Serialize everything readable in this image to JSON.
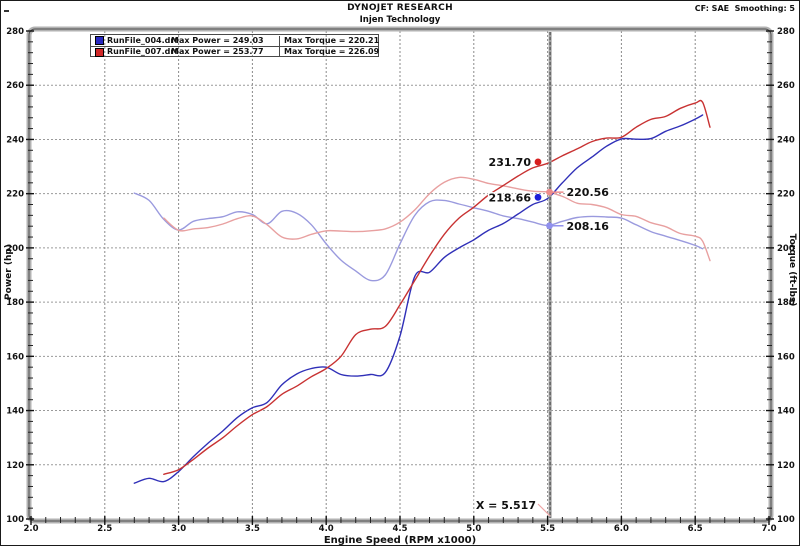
{
  "header": {
    "title": "DYNOJET RESEARCH",
    "subtitle": "Injen Technology",
    "correction": "CF: SAE  Smoothing: 5"
  },
  "legend": {
    "rows": [
      {
        "name": "RunFile_004.drf",
        "power": "Max Power = 249.03",
        "torque": "Max Torque = 220.21",
        "color": "#2828c0"
      },
      {
        "name": "RunFile_007.drf",
        "power": "Max Power = 253.77",
        "torque": "Max Torque = 226.09",
        "color": "#d02828"
      }
    ]
  },
  "axes": {
    "left_label": "Power (hp)",
    "right_label": "Torque (ft-lbs)",
    "bottom_label": "Engine Speed (RPM x1000)"
  },
  "cursor": {
    "label": "X = 5.517",
    "value": 5.517
  },
  "annotations": [
    {
      "kind": "power-red",
      "text": "231.70",
      "value": 231.7,
      "color": "#d81e1e",
      "side": "left"
    },
    {
      "kind": "power-blue",
      "text": "218.66",
      "value": 218.66,
      "color": "#1e1ed8",
      "side": "left"
    },
    {
      "kind": "torque-red",
      "text": "220.56",
      "value": 220.56,
      "color": "#ee8c8c",
      "side": "right"
    },
    {
      "kind": "torque-blue",
      "text": "208.16",
      "value": 208.16,
      "color": "#9090ee",
      "side": "right"
    }
  ],
  "chart_data": {
    "type": "line",
    "title": "DYNOJET RESEARCH - Injen Technology",
    "xlabel": "Engine Speed (RPM x1000)",
    "ylabel_left": "Power (hp)",
    "ylabel_right": "Torque (ft-lbs)",
    "xlim": [
      2.0,
      7.0
    ],
    "ylim": [
      100,
      280
    ],
    "x_ticks": [
      "2.0",
      "2.5",
      "3.0",
      "3.5",
      "4.0",
      "4.5",
      "5.0",
      "5.5",
      "6.0",
      "6.5",
      "7.0"
    ],
    "y_ticks": [
      280,
      260,
      240,
      220,
      200,
      180,
      160,
      140,
      120,
      100
    ],
    "grid": true,
    "x": [
      2.7,
      2.8,
      2.9,
      3.0,
      3.1,
      3.2,
      3.3,
      3.4,
      3.5,
      3.6,
      3.7,
      3.8,
      3.9,
      4.0,
      4.1,
      4.2,
      4.3,
      4.4,
      4.5,
      4.6,
      4.7,
      4.8,
      4.9,
      5.0,
      5.1,
      5.2,
      5.3,
      5.4,
      5.5,
      5.6,
      5.7,
      5.8,
      5.9,
      6.0,
      6.1,
      6.2,
      6.3,
      6.4,
      6.5,
      6.55,
      6.6
    ],
    "series": [
      {
        "name": "RunFile_004.drf Power",
        "axis": "left",
        "color": "#3030b8",
        "z": 3,
        "values": [
          113.2,
          115.0,
          113.8,
          117.5,
          123.0,
          128.0,
          132.5,
          137.5,
          141.0,
          143.0,
          149.5,
          153.5,
          155.5,
          156.0,
          153.3,
          152.7,
          153.3,
          154.0,
          167.5,
          189.5,
          191.0,
          196.5,
          200.0,
          203.0,
          206.5,
          209.0,
          212.5,
          216.0,
          218.2,
          224.0,
          229.5,
          233.5,
          237.5,
          240.2,
          240.1,
          240.3,
          243.0,
          245.0,
          247.5,
          249.0,
          null
        ]
      },
      {
        "name": "RunFile_004.drf Torque",
        "axis": "right",
        "color": "#9a9ade",
        "z": 1,
        "values": [
          220.2,
          217.5,
          210.5,
          206.6,
          209.8,
          210.8,
          211.5,
          213.3,
          212.3,
          208.9,
          213.5,
          212.8,
          208.5,
          201.5,
          195.5,
          191.5,
          188.0,
          190.0,
          201.5,
          212.0,
          217.0,
          217.5,
          216.2,
          214.8,
          213.5,
          211.8,
          210.8,
          209.5,
          208.3,
          209.8,
          211.2,
          211.6,
          211.4,
          211.0,
          208.5,
          206.0,
          204.3,
          202.7,
          200.9,
          199.7,
          null
        ]
      },
      {
        "name": "RunFile_007.drf Power",
        "axis": "left",
        "color": "#c83232",
        "z": 4,
        "values": [
          null,
          null,
          116.5,
          118.2,
          122.0,
          126.2,
          130.0,
          134.5,
          138.5,
          141.5,
          146.0,
          149.0,
          152.5,
          155.5,
          160.0,
          168.0,
          170.0,
          171.0,
          179.0,
          188.0,
          197.0,
          205.0,
          211.0,
          215.0,
          219.5,
          223.0,
          226.5,
          229.5,
          231.2,
          234.0,
          236.5,
          239.2,
          240.5,
          240.8,
          244.5,
          247.4,
          248.5,
          251.5,
          253.4,
          253.7,
          244.5
        ]
      },
      {
        "name": "RunFile_007.drf Torque",
        "axis": "right",
        "color": "#e8a0a0",
        "z": 2,
        "values": [
          null,
          null,
          211.0,
          206.5,
          207.0,
          207.5,
          208.8,
          210.8,
          211.8,
          208.5,
          204.0,
          203.3,
          205.0,
          206.3,
          206.2,
          206.0,
          206.3,
          207.0,
          209.5,
          214.0,
          220.0,
          224.2,
          226.0,
          225.3,
          223.8,
          222.9,
          221.8,
          220.9,
          220.6,
          219.0,
          216.5,
          216.0,
          214.8,
          212.3,
          211.6,
          209.3,
          207.8,
          205.3,
          204.3,
          202.5,
          195.3
        ]
      }
    ],
    "cursor_values": {
      "x": 5.517,
      "RunFile_007_power": 231.7,
      "RunFile_004_power": 218.66,
      "RunFile_007_torque": 220.56,
      "RunFile_004_torque": 208.16
    },
    "legend_position": "top-left"
  }
}
